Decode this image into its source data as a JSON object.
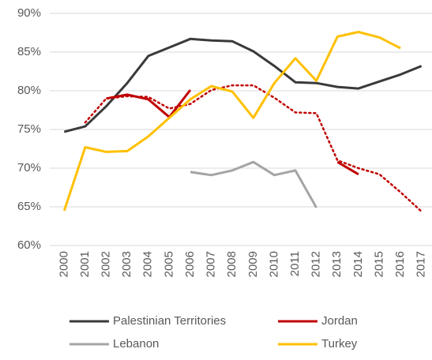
{
  "chart_data": {
    "type": "line",
    "categories": [
      "2000",
      "2001",
      "2002",
      "2003",
      "2004",
      "2005",
      "2006",
      "2007",
      "2008",
      "2009",
      "2010",
      "2011",
      "2012",
      "2013",
      "2014",
      "2015",
      "2016",
      "2017"
    ],
    "series": [
      {
        "name": "Palestinian Territories",
        "color": "#3a3a3a",
        "values": [
          74.7,
          75.4,
          78.0,
          81.0,
          84.5,
          85.6,
          86.7,
          86.5,
          86.4,
          85.1,
          83.2,
          81.1,
          81.0,
          80.5,
          80.3,
          81.2,
          82.1,
          83.2
        ]
      },
      {
        "name": "Jordan",
        "color": "#c00000",
        "values": [
          null,
          null,
          79.0,
          79.5,
          78.9,
          76.6,
          80.1,
          null,
          null,
          null,
          null,
          null,
          null,
          70.8,
          69.2,
          null,
          null,
          null
        ]
      },
      {
        "color": "#c00000",
        "dash": true,
        "values": [
          null,
          75.9,
          79.0,
          79.3,
          79.2,
          77.7,
          78.3,
          80.1,
          80.7,
          80.7,
          79.1,
          77.2,
          77.1,
          71.0,
          70.0,
          69.2,
          66.9,
          64.4
        ]
      },
      {
        "name": "Lebanon",
        "color": "#a5a5a5",
        "values": [
          null,
          null,
          null,
          null,
          null,
          null,
          69.5,
          69.1,
          69.7,
          70.8,
          69.1,
          69.7,
          64.9,
          null,
          null,
          null,
          null,
          null
        ]
      },
      {
        "name": "Turkey",
        "color": "#ffc000",
        "values": [
          64.5,
          72.7,
          72.1,
          72.2,
          74.1,
          76.5,
          78.9,
          80.6,
          79.9,
          76.5,
          81.0,
          84.2,
          81.3,
          87.0,
          87.6,
          86.9,
          85.5,
          null
        ]
      }
    ],
    "ylim": [
      60,
      90
    ],
    "yticks": [
      {
        "value": 60,
        "label": "60%"
      },
      {
        "value": 65,
        "label": "65%"
      },
      {
        "value": 70,
        "label": "70%"
      },
      {
        "value": 75,
        "label": "75%"
      },
      {
        "value": 80,
        "label": "80%"
      },
      {
        "value": 85,
        "label": "85%"
      },
      {
        "value": 90,
        "label": "90%"
      }
    ],
    "grid": true,
    "legend": "bottom"
  }
}
